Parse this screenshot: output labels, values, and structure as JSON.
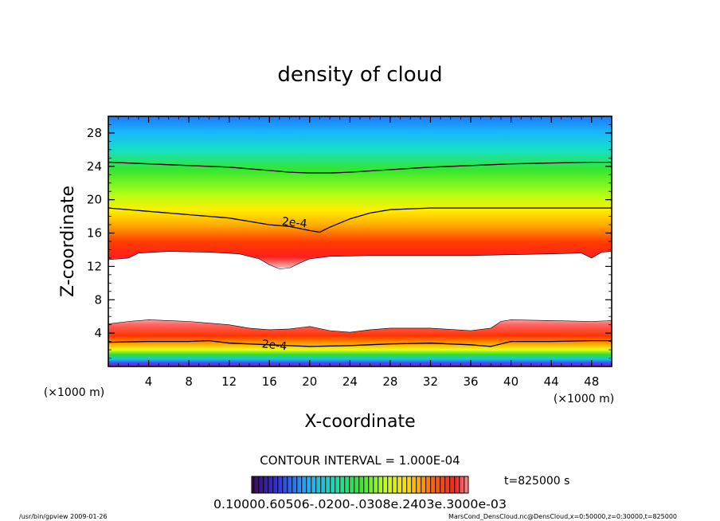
{
  "chart_data": {
    "type": "heatmap",
    "title": "density of cloud",
    "xlabel": "X-coordinate",
    "ylabel": "Z-coordinate",
    "x_unit_label": "(×1000 m)",
    "y_unit_label": "(×1000 m)",
    "xlim": [
      0,
      50
    ],
    "ylim": [
      0,
      30
    ],
    "x_ticks": [
      4,
      8,
      12,
      16,
      20,
      24,
      28,
      32,
      36,
      40,
      44,
      48
    ],
    "y_ticks": [
      4,
      8,
      12,
      16,
      20,
      24,
      28
    ],
    "contour_interval_text": "CONTOUR INTERVAL = 1.000E-04",
    "time_text": "t=825000 s",
    "colorbar_labels_text": "0.10000.60506-.0200-.0308e.2403e.3000e-03",
    "footer_left": "/usr/bin/gpview   2009-01-26",
    "footer_right": "MarsCond_DensCloud.nc@DensCloud,x=0:50000,z=0:30000,t=825000",
    "contours": [
      {
        "level_label": "2e-4",
        "label_at": [
          18.5,
          17.3
        ],
        "points": [
          [
            0,
            19.0
          ],
          [
            4,
            18.6
          ],
          [
            8,
            18.2
          ],
          [
            12,
            17.8
          ],
          [
            14,
            17.4
          ],
          [
            16,
            17.0
          ],
          [
            18,
            16.8
          ],
          [
            20,
            16.3
          ],
          [
            21,
            16.1
          ],
          [
            22,
            16.7
          ],
          [
            24,
            17.7
          ],
          [
            26,
            18.4
          ],
          [
            28,
            18.8
          ],
          [
            32,
            19.0
          ],
          [
            36,
            19.0
          ],
          [
            40,
            19.0
          ],
          [
            44,
            19.0
          ],
          [
            48,
            19.0
          ],
          [
            50,
            19.0
          ]
        ]
      },
      {
        "level_label": "",
        "label_at": null,
        "points": [
          [
            0,
            24.5
          ],
          [
            4,
            24.3
          ],
          [
            8,
            24.1
          ],
          [
            12,
            23.9
          ],
          [
            16,
            23.5
          ],
          [
            18,
            23.3
          ],
          [
            20,
            23.2
          ],
          [
            22,
            23.2
          ],
          [
            24,
            23.3
          ],
          [
            28,
            23.6
          ],
          [
            32,
            23.9
          ],
          [
            36,
            24.1
          ],
          [
            40,
            24.3
          ],
          [
            44,
            24.4
          ],
          [
            48,
            24.5
          ],
          [
            50,
            24.5
          ]
        ]
      },
      {
        "level_label": "2e-4",
        "label_at": [
          16.5,
          2.6
        ],
        "points": [
          [
            0,
            2.9
          ],
          [
            4,
            3.0
          ],
          [
            8,
            3.0
          ],
          [
            10,
            3.1
          ],
          [
            12,
            2.8
          ],
          [
            14,
            2.7
          ],
          [
            16,
            2.6
          ],
          [
            18,
            2.5
          ],
          [
            20,
            2.4
          ],
          [
            24,
            2.5
          ],
          [
            28,
            2.7
          ],
          [
            32,
            2.8
          ],
          [
            36,
            2.6
          ],
          [
            38,
            2.4
          ],
          [
            40,
            3.0
          ],
          [
            44,
            3.0
          ],
          [
            48,
            3.1
          ],
          [
            50,
            3.1
          ]
        ]
      }
    ],
    "clear_region_top": [
      [
        0,
        12.8
      ],
      [
        2,
        13.0
      ],
      [
        3,
        13.6
      ],
      [
        6,
        13.8
      ],
      [
        10,
        13.7
      ],
      [
        13,
        13.5
      ],
      [
        15,
        12.9
      ],
      [
        16,
        12.2
      ],
      [
        17,
        11.7
      ],
      [
        18,
        11.8
      ],
      [
        19,
        12.4
      ],
      [
        20,
        12.9
      ],
      [
        22,
        13.2
      ],
      [
        26,
        13.3
      ],
      [
        30,
        13.3
      ],
      [
        36,
        13.3
      ],
      [
        40,
        13.4
      ],
      [
        44,
        13.5
      ],
      [
        47,
        13.6
      ],
      [
        48,
        13.0
      ],
      [
        49,
        13.7
      ],
      [
        50,
        13.8
      ]
    ],
    "clear_region_bottom": [
      [
        0,
        5.1
      ],
      [
        2,
        5.4
      ],
      [
        4,
        5.6
      ],
      [
        6,
        5.5
      ],
      [
        8,
        5.4
      ],
      [
        10,
        5.2
      ],
      [
        12,
        5.0
      ],
      [
        14,
        4.6
      ],
      [
        16,
        4.4
      ],
      [
        18,
        4.5
      ],
      [
        20,
        4.8
      ],
      [
        22,
        4.3
      ],
      [
        24,
        4.1
      ],
      [
        26,
        4.4
      ],
      [
        28,
        4.6
      ],
      [
        32,
        4.6
      ],
      [
        36,
        4.3
      ],
      [
        38,
        4.6
      ],
      [
        39,
        5.4
      ],
      [
        40,
        5.6
      ],
      [
        44,
        5.5
      ],
      [
        48,
        5.4
      ],
      [
        50,
        5.5
      ]
    ]
  }
}
